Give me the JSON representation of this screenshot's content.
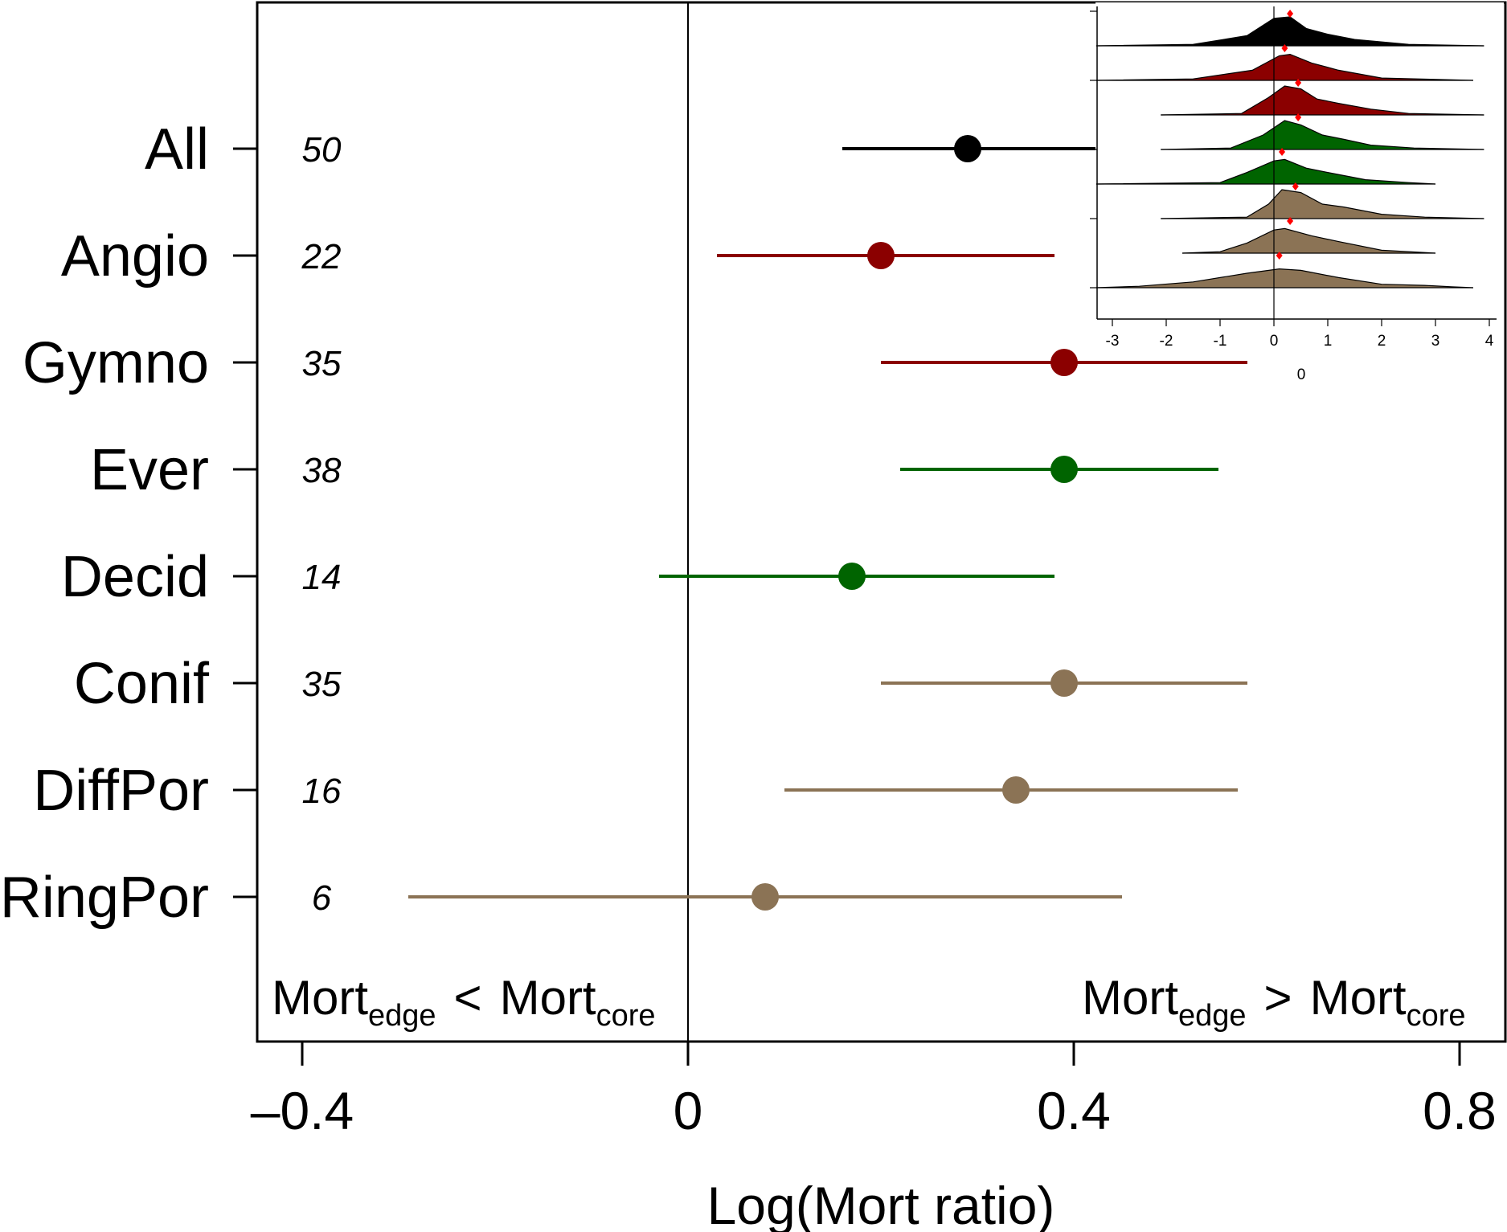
{
  "chart_data": [
    {
      "type": "scatter",
      "subtype": "forest-plot",
      "title": "",
      "xlabel": "Log(Mort ratio)",
      "ylabel": "",
      "xlim": [
        -0.4,
        0.8
      ],
      "x_ticks": [
        "–0.4",
        "0",
        "0.4",
        "0.8"
      ],
      "x_tick_values": [
        -0.4,
        0,
        0.4,
        0.8
      ],
      "reference_line": 0,
      "categories": [
        "All",
        "Angio",
        "Gymno",
        "Ever",
        "Decid",
        "Conif",
        "DiffPor",
        "RingPor"
      ],
      "series": [
        {
          "values": [
            0.29,
            0.2,
            0.39,
            0.39,
            0.17,
            0.39,
            0.34,
            0.08
          ],
          "ci_low": [
            0.16,
            0.03,
            0.2,
            0.22,
            -0.03,
            0.2,
            0.1,
            -0.29
          ],
          "ci_high": [
            0.44,
            0.38,
            0.58,
            0.55,
            0.38,
            0.58,
            0.57,
            0.45
          ],
          "n": [
            "50",
            "22",
            "35",
            "38",
            "14",
            "35",
            "16",
            "6"
          ]
        }
      ],
      "colors": [
        "#000000",
        "#8b0000",
        "#8b0000",
        "#006400",
        "#006400",
        "#8b7355",
        "#8b7355",
        "#8b7355"
      ],
      "annotations": {
        "left": {
          "main1": "Mort",
          "sub1": "edge",
          "op": "<",
          "main2": "Mort",
          "sub2": "core"
        },
        "right": {
          "main1": "Mort",
          "sub1": "edge",
          "op": ">",
          "main2": "Mort",
          "sub2": "core"
        }
      }
    },
    {
      "type": "area",
      "subtype": "ridgeline-density",
      "title": "",
      "xlabel": "0",
      "xlim": [
        -3.2,
        4.1
      ],
      "x_ticks": [
        "-3",
        "-2",
        "-1",
        "0",
        "1",
        "2",
        "3",
        "4"
      ],
      "x_tick_values": [
        -3,
        -2,
        -1,
        0,
        1,
        2,
        3,
        4
      ],
      "reference_line": 0,
      "series": [
        {
          "fill": "#000000",
          "range": [
            -3.3,
            3.9
          ],
          "mean": 0.3,
          "density": [
            [
              -1.5,
              0.05
            ],
            [
              -0.5,
              0.35
            ],
            [
              0,
              0.95
            ],
            [
              0.3,
              1.0
            ],
            [
              0.6,
              0.6
            ],
            [
              1.0,
              0.4
            ],
            [
              1.5,
              0.22
            ],
            [
              2.5,
              0.05
            ]
          ]
        },
        {
          "fill": "#8b0000",
          "range": [
            -3.3,
            3.7
          ],
          "mean": 0.2,
          "density": [
            [
              -1.5,
              0.05
            ],
            [
              -0.4,
              0.35
            ],
            [
              0.1,
              0.85
            ],
            [
              0.3,
              0.9
            ],
            [
              0.7,
              0.6
            ],
            [
              1.2,
              0.35
            ],
            [
              2.0,
              0.08
            ]
          ]
        },
        {
          "fill": "#8b0000",
          "range": [
            -2.1,
            3.9
          ],
          "mean": 0.45,
          "density": [
            [
              -0.6,
              0.05
            ],
            [
              -0.1,
              0.6
            ],
            [
              0.2,
              1.0
            ],
            [
              0.5,
              0.9
            ],
            [
              0.8,
              0.55
            ],
            [
              1.2,
              0.4
            ],
            [
              1.8,
              0.2
            ],
            [
              2.5,
              0.05
            ]
          ]
        },
        {
          "fill": "#006400",
          "range": [
            -2.1,
            3.9
          ],
          "mean": 0.45,
          "density": [
            [
              -0.8,
              0.05
            ],
            [
              -0.2,
              0.5
            ],
            [
              0.2,
              1.0
            ],
            [
              0.5,
              0.85
            ],
            [
              0.9,
              0.5
            ],
            [
              1.3,
              0.35
            ],
            [
              1.8,
              0.15
            ],
            [
              2.6,
              0.05
            ]
          ]
        },
        {
          "fill": "#006400",
          "range": [
            -3.3,
            3.0
          ],
          "mean": 0.15,
          "density": [
            [
              -1.0,
              0.05
            ],
            [
              -0.5,
              0.4
            ],
            [
              0,
              0.8
            ],
            [
              0.2,
              0.85
            ],
            [
              0.6,
              0.55
            ],
            [
              1.0,
              0.4
            ],
            [
              1.7,
              0.15
            ],
            [
              2.5,
              0.05
            ]
          ]
        },
        {
          "fill": "#8b7355",
          "range": [
            -2.1,
            3.9
          ],
          "mean": 0.4,
          "density": [
            [
              -0.5,
              0.05
            ],
            [
              -0.1,
              0.5
            ],
            [
              0.15,
              1.0
            ],
            [
              0.5,
              0.9
            ],
            [
              0.9,
              0.5
            ],
            [
              1.3,
              0.4
            ],
            [
              2.0,
              0.15
            ],
            [
              2.8,
              0.05
            ]
          ]
        },
        {
          "fill": "#8b7355",
          "range": [
            -1.7,
            3.0
          ],
          "mean": 0.3,
          "density": [
            [
              -1.0,
              0.05
            ],
            [
              -0.5,
              0.35
            ],
            [
              0,
              0.8
            ],
            [
              0.2,
              0.85
            ],
            [
              0.7,
              0.6
            ],
            [
              1.2,
              0.4
            ],
            [
              2.0,
              0.1
            ]
          ]
        },
        {
          "fill": "#8b7355",
          "range": [
            -3.3,
            3.7
          ],
          "mean": 0.1,
          "density": [
            [
              -2.5,
              0.05
            ],
            [
              -1.5,
              0.2
            ],
            [
              -0.5,
              0.5
            ],
            [
              0.1,
              0.65
            ],
            [
              0.5,
              0.6
            ],
            [
              1.2,
              0.35
            ],
            [
              2.0,
              0.12
            ],
            [
              2.8,
              0.08
            ],
            [
              3.3,
              0.03
            ]
          ]
        }
      ]
    }
  ]
}
